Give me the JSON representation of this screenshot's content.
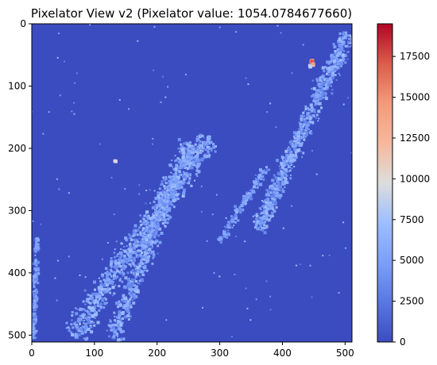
{
  "chart_data": {
    "type": "heatmap",
    "title": "Pixelator View v2 (Pixelator value: 1054.0784677660)",
    "xlabel": "",
    "ylabel": "",
    "xlim": [
      0,
      511
    ],
    "ylim": [
      511,
      0
    ],
    "x_ticks": [
      0,
      100,
      200,
      300,
      400,
      500
    ],
    "y_ticks": [
      0,
      100,
      200,
      300,
      400,
      500
    ],
    "colormap": "coolwarm",
    "background_value": 0,
    "colorbar": {
      "range": [
        0,
        19500
      ],
      "ticks": [
        0,
        2500,
        5000,
        7500,
        10000,
        12500,
        15000,
        17500
      ],
      "tick_labels": [
        "0",
        "2500",
        "5000",
        "7500",
        "10000",
        "12500",
        "15000",
        "17500"
      ]
    },
    "colors": {
      "low": "#3b4cc0",
      "mid": "#dddddd",
      "high": "#b40426"
    },
    "structures": [
      {
        "name": "left-diagonal-band",
        "from": [
          65,
          500
        ],
        "to": [
          280,
          185
        ],
        "width": 55,
        "count": 900,
        "value_range": [
          3000,
          7500
        ]
      },
      {
        "name": "middle-diagonal-band",
        "from": [
          130,
          505
        ],
        "to": [
          250,
          190
        ],
        "width": 40,
        "count": 650,
        "value_range": [
          3000,
          7500
        ]
      },
      {
        "name": "right-diagonal-band",
        "from": [
          360,
          330
        ],
        "to": [
          505,
          15
        ],
        "width": 38,
        "count": 750,
        "value_range": [
          3000,
          7500
        ]
      },
      {
        "name": "lower-right-strand",
        "from": [
          300,
          350
        ],
        "to": [
          375,
          230
        ],
        "width": 20,
        "count": 140,
        "value_range": [
          3000,
          6500
        ]
      },
      {
        "name": "left-edge-strip",
        "from": [
          3,
          505
        ],
        "to": [
          8,
          345
        ],
        "width": 12,
        "count": 140,
        "value_range": [
          3000,
          6500
        ]
      }
    ],
    "hotspots": [
      {
        "x": 447,
        "y": 60,
        "value": 19000
      },
      {
        "x": 449,
        "y": 66,
        "value": 14000
      },
      {
        "x": 444,
        "y": 68,
        "value": 10000
      },
      {
        "x": 134,
        "y": 221,
        "value": 11000
      },
      {
        "x": 226,
        "y": 260,
        "value": 8500
      },
      {
        "x": 283,
        "y": 183,
        "value": 8000
      }
    ]
  }
}
